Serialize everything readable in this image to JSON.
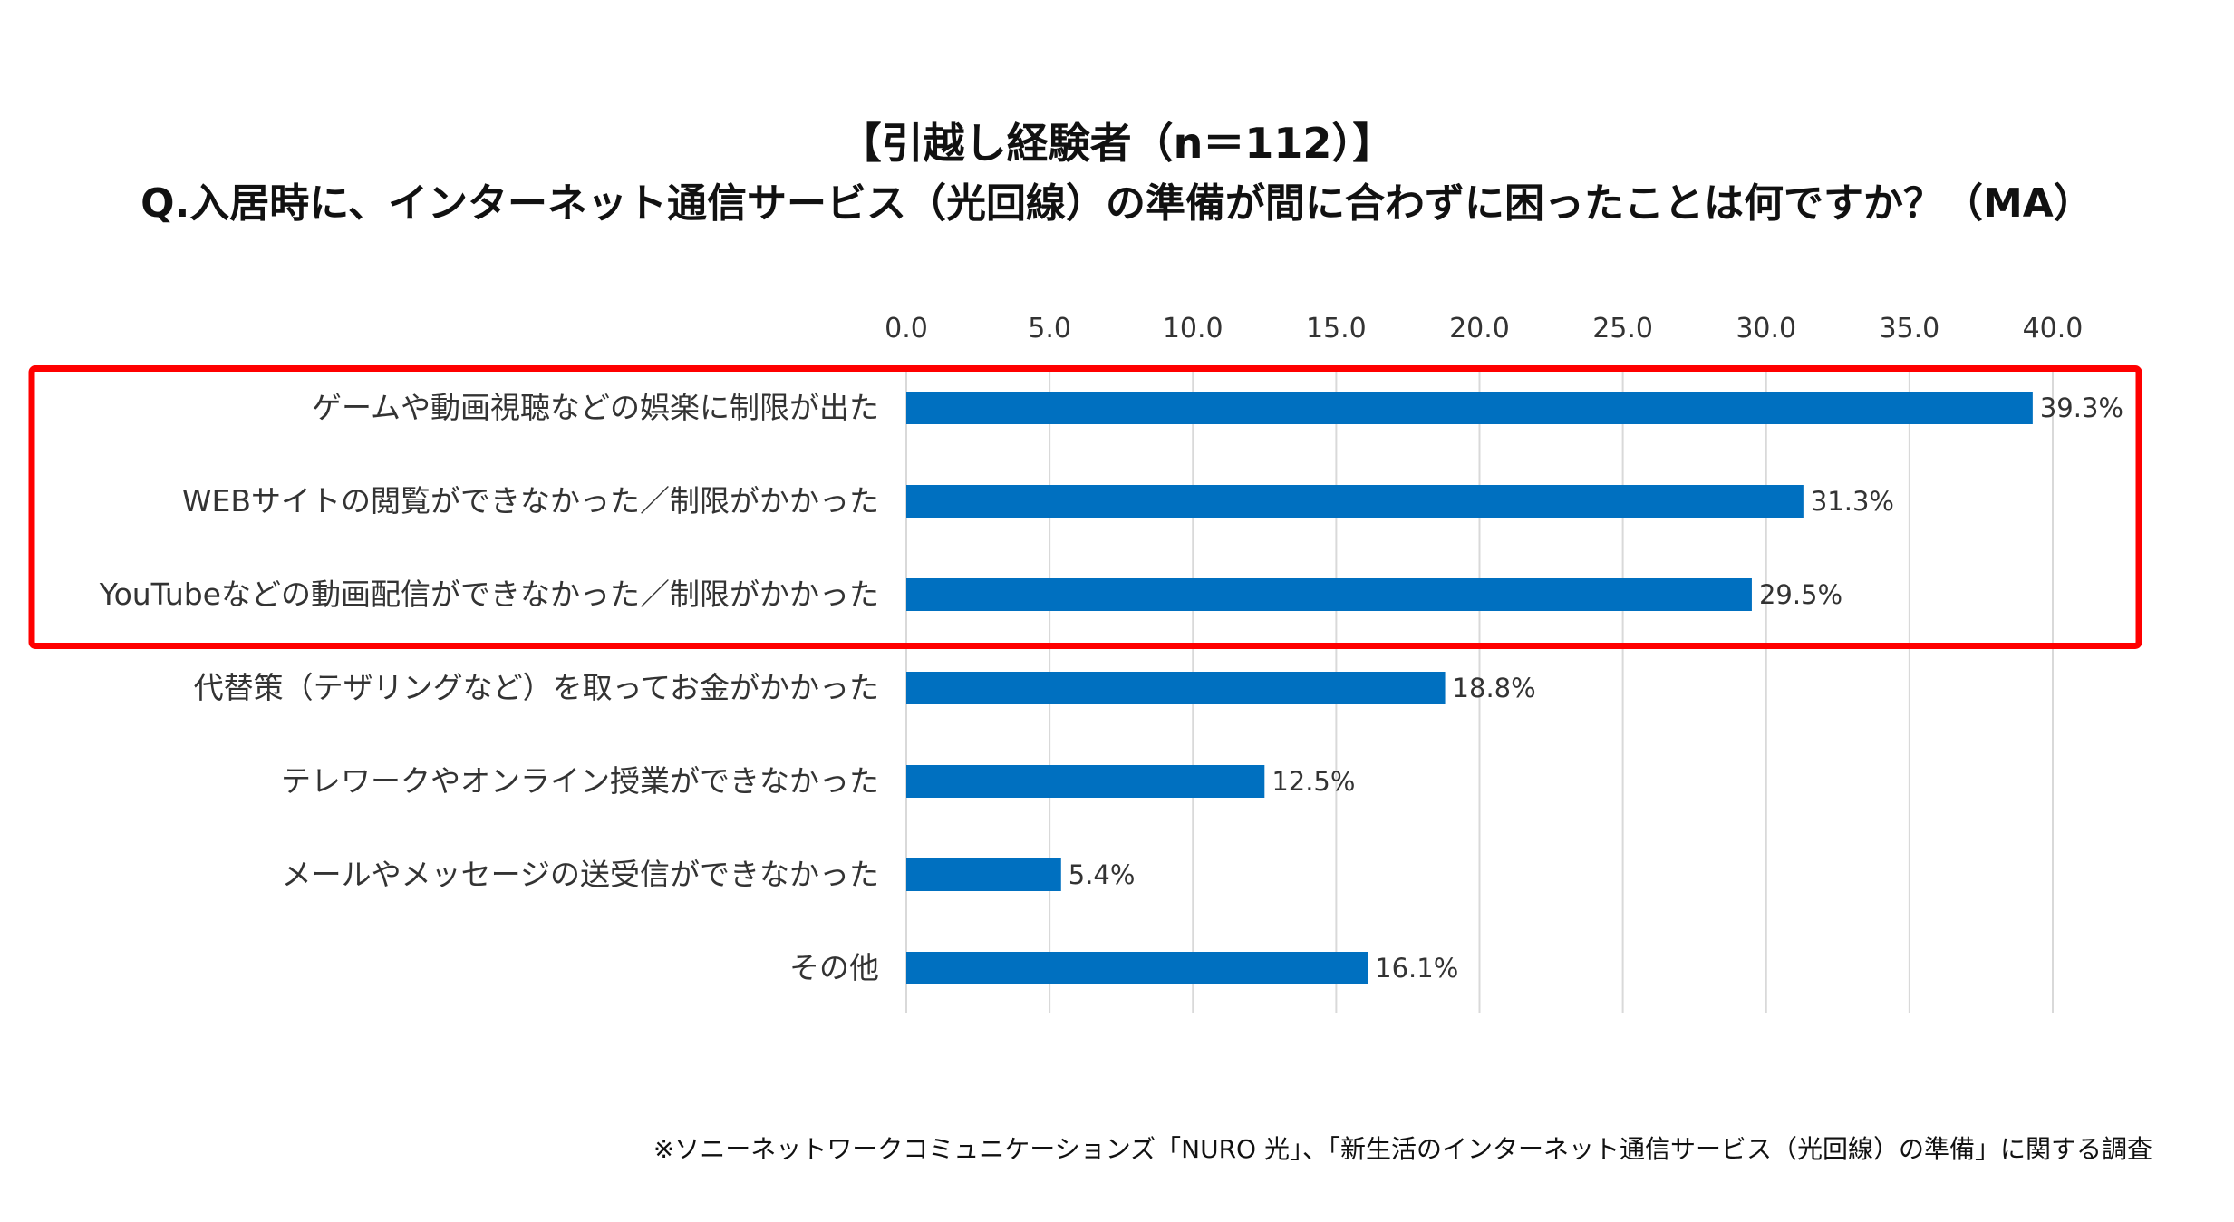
{
  "chart_data": {
    "type": "bar",
    "orientation": "horizontal",
    "title": "【引越し経験者（n＝112）】",
    "subtitle": "Q.入居時に、インターネット通信サービス（光回線）の準備が間に合わずに困ったことは何ですか？（MA）",
    "categories": [
      "ゲームや動画視聴などの娯楽に制限が出た",
      "WEBサイトの閲覧ができなかった／制限がかかった",
      "YouTubeなどの動画配信ができなかった／制限がかかった",
      "代替策（テザリングなど）を取ってお金がかかった",
      "テレワークやオンライン授業ができなかった",
      "メールやメッセージの送受信ができなかった",
      "その他"
    ],
    "values": [
      39.3,
      31.3,
      29.5,
      18.8,
      12.5,
      5.4,
      16.1
    ],
    "value_labels": [
      "39.3%",
      "31.3%",
      "29.5%",
      "18.8%",
      "12.5%",
      "5.4%",
      "16.1%"
    ],
    "xlim": [
      0,
      40
    ],
    "xticks": [
      "0.0",
      "5.0",
      "10.0",
      "15.0",
      "20.0",
      "25.0",
      "30.0",
      "35.0",
      "40.0"
    ],
    "xtick_values": [
      0,
      5,
      10,
      15,
      20,
      25,
      30,
      35,
      40
    ],
    "axis_position": "top",
    "grid": true,
    "highlight_first_n": 3,
    "bar_color": "#0070c0",
    "highlight_color": "#ff0000",
    "grid_color": "#d9d9d9"
  },
  "footnote": "※ソニーネットワークコミュニケーションズ「NURO 光」、「新生活のインターネット通信サービス（光回線）の準備」に関する調査"
}
